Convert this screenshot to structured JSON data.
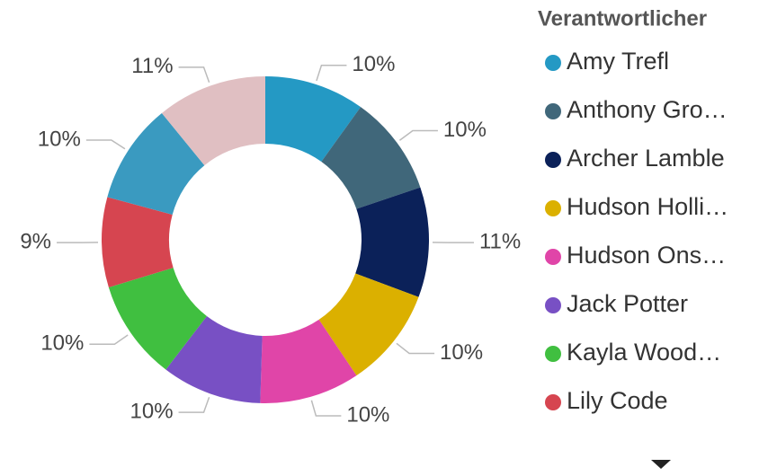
{
  "chart_data": {
    "type": "donut",
    "legend_title": "Verantwortlicher",
    "categories": [
      "Amy Trefl",
      "Anthony Gro…",
      "Archer Lamble",
      "Hudson Holli…",
      "Hudson Ons…",
      "Jack Potter",
      "Kayla Wood…",
      "Lily Code",
      null,
      null
    ],
    "values": [
      10,
      10,
      11,
      10,
      10,
      10,
      10,
      9,
      10,
      11
    ],
    "value_labels": [
      "10%",
      "10%",
      "11%",
      "10%",
      "10%",
      "10%",
      "10%",
      "9%",
      "10%",
      "11%"
    ],
    "colors": [
      "#2499c4",
      "#40677a",
      "#0b2159",
      "#dbb000",
      "#e045a8",
      "#7850c4",
      "#40bf40",
      "#d64550",
      "#3a9ac0",
      "#e0bfc2"
    ]
  }
}
